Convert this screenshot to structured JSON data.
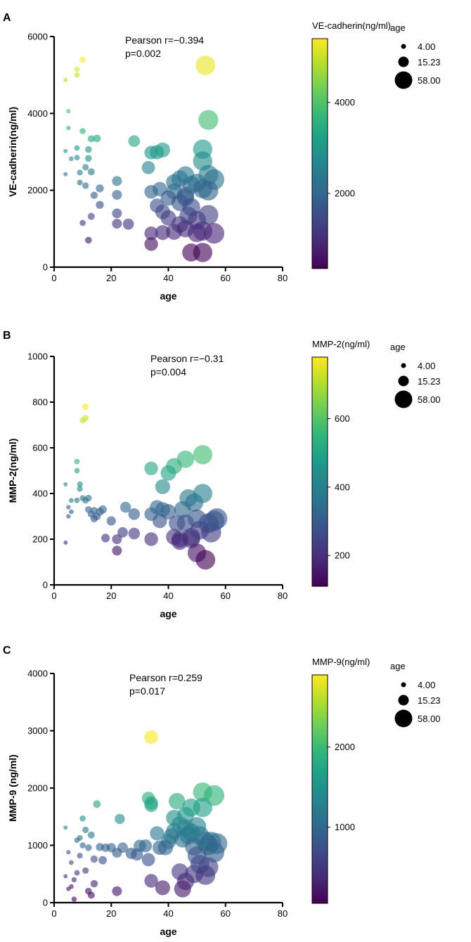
{
  "colors": {
    "viridis": [
      "#440154",
      "#482878",
      "#3e4989",
      "#31688e",
      "#26828e",
      "#1f9e89",
      "#35b779",
      "#6ece58",
      "#b5de2b",
      "#fde725"
    ],
    "axis": "#000000",
    "legend_marker": "#000000"
  },
  "chart_data": [
    {
      "type": "scatter",
      "panel_label": "A",
      "title": "",
      "xlabel": "age",
      "ylabel": "VE-cadherin(ng/ml)",
      "xlim": [
        0,
        80
      ],
      "ylim": [
        0,
        6000
      ],
      "xticks": [
        0,
        20,
        40,
        60,
        80
      ],
      "yticks": [
        0,
        2000,
        4000,
        6000
      ],
      "annotation": [
        "Pearson r=−0.394",
        "p=0.002"
      ],
      "colorbar": {
        "title": "VE-cadherin(ng/ml)",
        "range": [
          350,
          5400
        ],
        "ticks": [
          2000,
          4000
        ]
      },
      "size_legend": {
        "title": "age",
        "values": [
          "4.00",
          "15.23",
          "58.00"
        ]
      },
      "points": [
        [
          4,
          4870
        ],
        [
          8,
          5000
        ],
        [
          8,
          5150
        ],
        [
          10,
          5400
        ],
        [
          5,
          4060
        ],
        [
          5,
          3620
        ],
        [
          10,
          3540
        ],
        [
          12,
          3060
        ],
        [
          13,
          3340
        ],
        [
          15,
          3350
        ],
        [
          8,
          3100
        ],
        [
          6,
          2820
        ],
        [
          8,
          2850
        ],
        [
          4,
          3020
        ],
        [
          4,
          2420
        ],
        [
          9,
          2460
        ],
        [
          11,
          2600
        ],
        [
          12,
          2830
        ],
        [
          13,
          2480
        ],
        [
          9,
          2200
        ],
        [
          11,
          2120
        ],
        [
          14,
          1870
        ],
        [
          16,
          2050
        ],
        [
          16,
          1620
        ],
        [
          22,
          2240
        ],
        [
          22,
          1880
        ],
        [
          22,
          1400
        ],
        [
          26,
          1120
        ],
        [
          22,
          1130
        ],
        [
          13,
          1320
        ],
        [
          10,
          1150
        ],
        [
          12,
          700
        ],
        [
          28,
          3280
        ],
        [
          33,
          2590
        ],
        [
          34,
          2980
        ],
        [
          36,
          2990
        ],
        [
          38,
          3050
        ],
        [
          34,
          1960
        ],
        [
          36,
          1600
        ],
        [
          37,
          2030
        ],
        [
          38,
          1440
        ],
        [
          40,
          1800
        ],
        [
          42,
          1970
        ],
        [
          42,
          2210
        ],
        [
          44,
          2300
        ],
        [
          46,
          1810
        ],
        [
          46,
          2400
        ],
        [
          48,
          2140
        ],
        [
          50,
          2190
        ],
        [
          52,
          2040
        ],
        [
          52,
          3070
        ],
        [
          52,
          2760
        ],
        [
          54,
          2400
        ],
        [
          56,
          2280
        ],
        [
          54,
          3830
        ],
        [
          54,
          1990
        ],
        [
          53,
          5250
        ],
        [
          34,
          880
        ],
        [
          34,
          600
        ],
        [
          38,
          900
        ],
        [
          40,
          1280
        ],
        [
          42,
          920
        ],
        [
          44,
          1110
        ],
        [
          44,
          1680
        ],
        [
          46,
          1870
        ],
        [
          46,
          1000
        ],
        [
          47,
          1340
        ],
        [
          48,
          380
        ],
        [
          48,
          1560
        ],
        [
          50,
          890
        ],
        [
          50,
          1220
        ],
        [
          52,
          940
        ],
        [
          52,
          380
        ],
        [
          54,
          1360
        ],
        [
          56,
          880
        ]
      ]
    },
    {
      "type": "scatter",
      "panel_label": "B",
      "title": "",
      "xlabel": "age",
      "ylabel": "MMP-2(ng/ml)",
      "xlim": [
        0,
        80
      ],
      "ylim": [
        0,
        1000
      ],
      "xticks": [
        0,
        20,
        40,
        60,
        80
      ],
      "yticks": [
        0,
        200,
        400,
        600,
        800,
        1000
      ],
      "annotation": [
        "Pearson r=−0.31",
        "p=0.004"
      ],
      "colorbar": {
        "title": "MMP-2(ng/ml)",
        "range": [
          110,
          780
        ],
        "ticks": [
          200,
          400,
          600
        ]
      },
      "size_legend": {
        "title": "age",
        "values": [
          "4.00",
          "15.23",
          "58.00"
        ]
      },
      "points": [
        [
          4,
          185
        ],
        [
          4,
          440
        ],
        [
          5,
          340
        ],
        [
          5,
          300
        ],
        [
          6,
          320
        ],
        [
          6,
          370
        ],
        [
          8,
          540
        ],
        [
          8,
          500
        ],
        [
          8,
          370
        ],
        [
          9,
          420
        ],
        [
          9,
          440
        ],
        [
          10,
          720
        ],
        [
          11,
          730
        ],
        [
          11,
          780
        ],
        [
          10,
          380
        ],
        [
          11,
          370
        ],
        [
          12,
          380
        ],
        [
          12,
          330
        ],
        [
          13,
          310
        ],
        [
          14,
          290
        ],
        [
          14,
          325
        ],
        [
          15,
          300
        ],
        [
          16,
          320
        ],
        [
          17,
          330
        ],
        [
          18,
          205
        ],
        [
          20,
          280
        ],
        [
          22,
          200
        ],
        [
          22,
          150
        ],
        [
          24,
          230
        ],
        [
          25,
          340
        ],
        [
          28,
          310
        ],
        [
          28,
          225
        ],
        [
          34,
          510
        ],
        [
          34,
          200
        ],
        [
          34,
          310
        ],
        [
          36,
          340
        ],
        [
          37,
          280
        ],
        [
          38,
          430
        ],
        [
          38,
          330
        ],
        [
          40,
          320
        ],
        [
          40,
          490
        ],
        [
          42,
          520
        ],
        [
          42,
          210
        ],
        [
          43,
          270
        ],
        [
          44,
          200
        ],
        [
          44,
          190
        ],
        [
          45,
          330
        ],
        [
          46,
          550
        ],
        [
          46,
          270
        ],
        [
          47,
          380
        ],
        [
          48,
          210
        ],
        [
          48,
          200
        ],
        [
          49,
          360
        ],
        [
          50,
          290
        ],
        [
          50,
          140
        ],
        [
          51,
          240
        ],
        [
          52,
          570
        ],
        [
          52,
          400
        ],
        [
          53,
          110
        ],
        [
          54,
          270
        ],
        [
          55,
          230
        ],
        [
          56,
          280
        ],
        [
          57,
          290
        ]
      ]
    },
    {
      "type": "scatter",
      "panel_label": "C",
      "title": "",
      "xlabel": "age",
      "ylabel": "MMP-9 (ng/ml)",
      "xlim": [
        0,
        80
      ],
      "ylim": [
        0,
        4000
      ],
      "xticks": [
        0,
        20,
        40,
        60,
        80
      ],
      "yticks": [
        0,
        1000,
        2000,
        3000,
        4000
      ],
      "annotation": [
        "Pearson r=0.259",
        "p=0.017"
      ],
      "colorbar": {
        "title": "MMP-9(ng/ml)",
        "range": [
          50,
          2900
        ],
        "ticks": [
          1000,
          2000
        ]
      },
      "size_legend": {
        "title": "age",
        "values": [
          "4.00",
          "15.23",
          "58.00"
        ]
      },
      "points": [
        [
          4,
          1310
        ],
        [
          4,
          460
        ],
        [
          5,
          880
        ],
        [
          5,
          240
        ],
        [
          6,
          700
        ],
        [
          6,
          280
        ],
        [
          7,
          60
        ],
        [
          7,
          400
        ],
        [
          8,
          1090
        ],
        [
          8,
          520
        ],
        [
          9,
          1130
        ],
        [
          9,
          820
        ],
        [
          10,
          1470
        ],
        [
          10,
          1000
        ],
        [
          11,
          1270
        ],
        [
          11,
          560
        ],
        [
          12,
          200
        ],
        [
          12,
          960
        ],
        [
          13,
          1180
        ],
        [
          13,
          130
        ],
        [
          14,
          760
        ],
        [
          14,
          330
        ],
        [
          15,
          1720
        ],
        [
          16,
          970
        ],
        [
          17,
          740
        ],
        [
          18,
          960
        ],
        [
          20,
          960
        ],
        [
          22,
          870
        ],
        [
          22,
          200
        ],
        [
          23,
          1460
        ],
        [
          24,
          960
        ],
        [
          27,
          860
        ],
        [
          29,
          840
        ],
        [
          30,
          990
        ],
        [
          32,
          990
        ],
        [
          33,
          1820
        ],
        [
          33,
          750
        ],
        [
          34,
          2890
        ],
        [
          34,
          1700
        ],
        [
          34,
          1740
        ],
        [
          34,
          380
        ],
        [
          36,
          1210
        ],
        [
          37,
          960
        ],
        [
          38,
          260
        ],
        [
          39,
          960
        ],
        [
          40,
          1070
        ],
        [
          41,
          1160
        ],
        [
          42,
          1250
        ],
        [
          42,
          1480
        ],
        [
          43,
          1770
        ],
        [
          44,
          1360
        ],
        [
          44,
          540
        ],
        [
          45,
          240
        ],
        [
          45,
          1110
        ],
        [
          46,
          1520
        ],
        [
          46,
          370
        ],
        [
          46,
          1300
        ],
        [
          47,
          1170
        ],
        [
          48,
          1230
        ],
        [
          48,
          1660
        ],
        [
          49,
          980
        ],
        [
          49,
          500
        ],
        [
          50,
          1330
        ],
        [
          50,
          820
        ],
        [
          51,
          1170
        ],
        [
          51,
          670
        ],
        [
          52,
          1930
        ],
        [
          52,
          1660
        ],
        [
          53,
          1070
        ],
        [
          53,
          480
        ],
        [
          54,
          1000
        ],
        [
          54,
          620
        ],
        [
          55,
          1060
        ],
        [
          56,
          1870
        ],
        [
          56,
          880
        ],
        [
          57,
          1030
        ]
      ]
    }
  ]
}
